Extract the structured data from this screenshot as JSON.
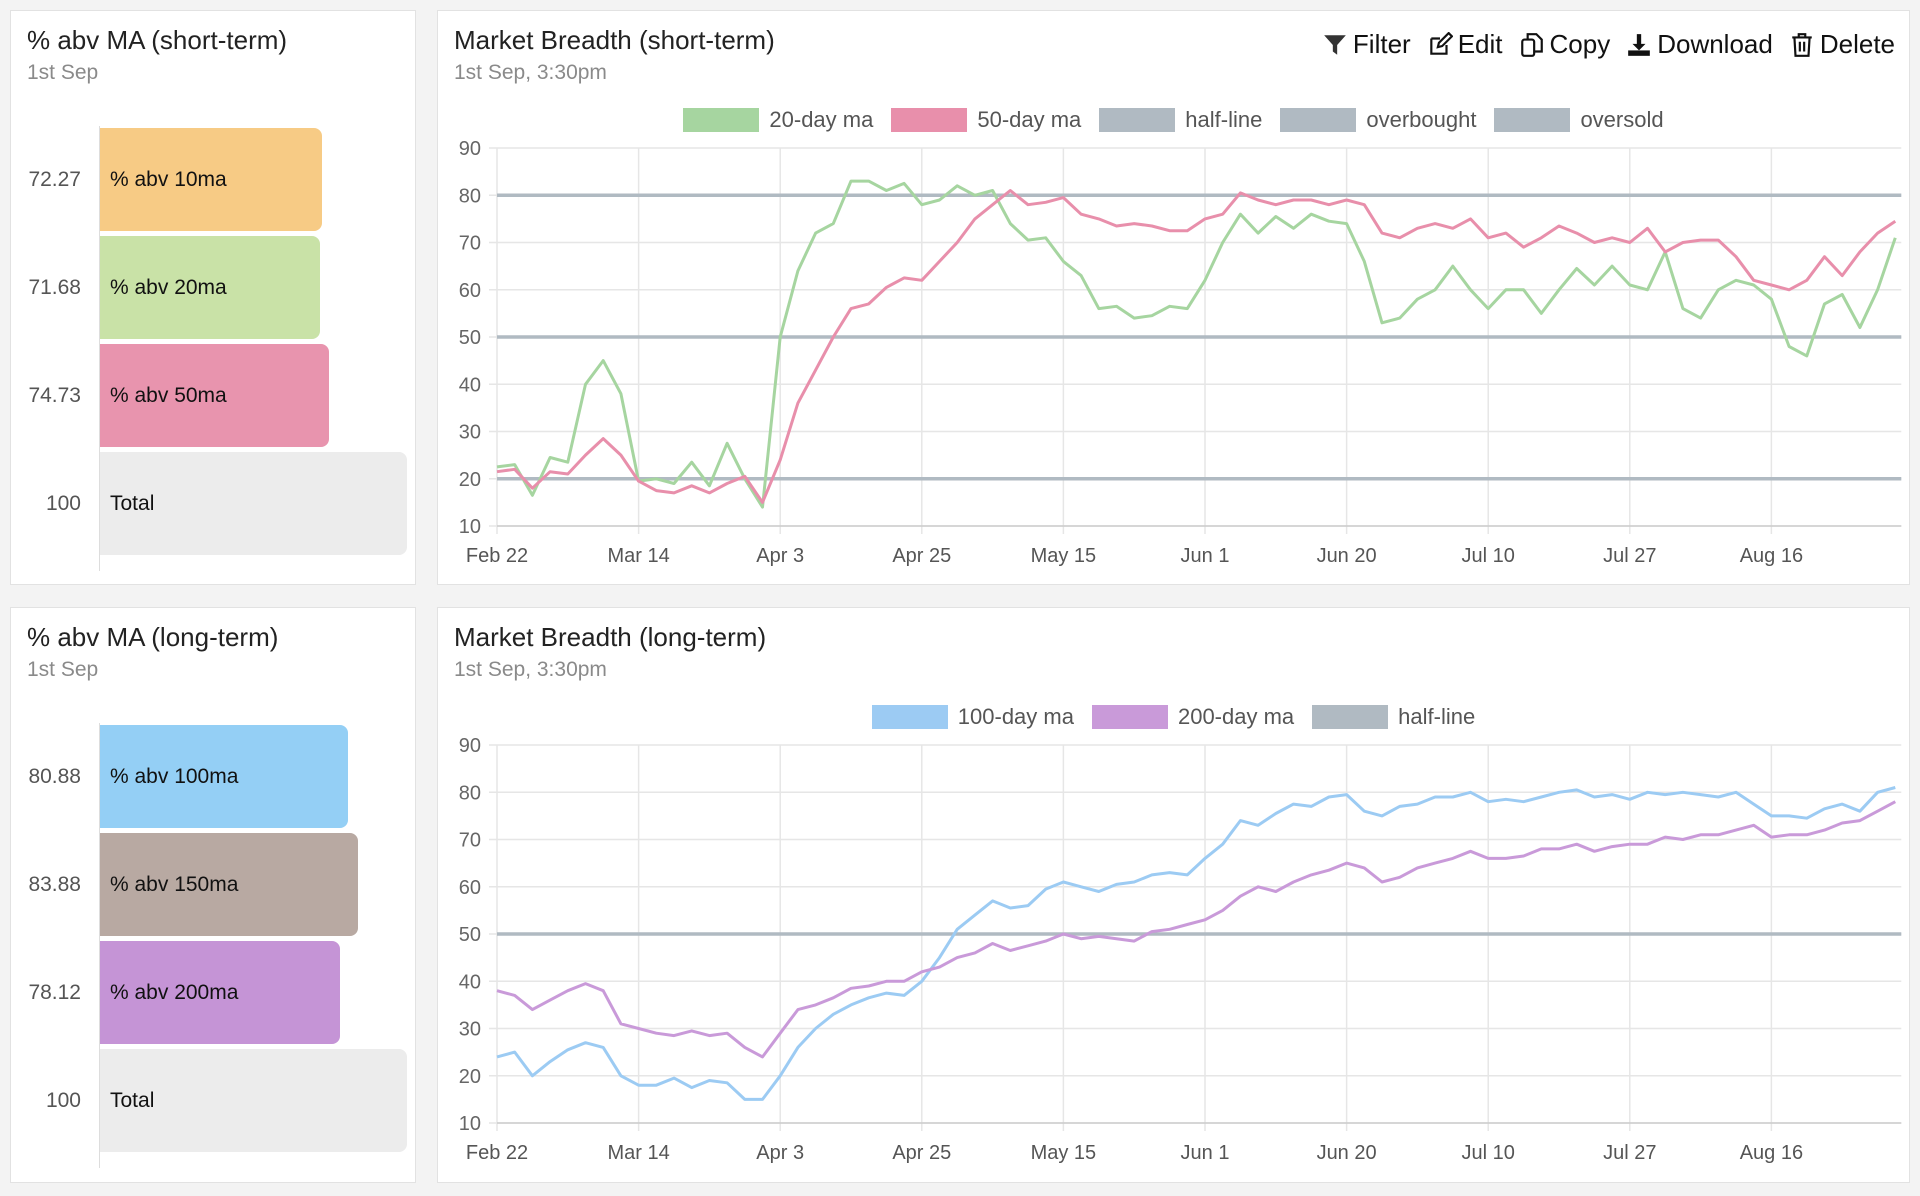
{
  "colors": {
    "ma10": "#f7cb85",
    "ma20": "#c9e2a7",
    "ma50": "#e894ae",
    "total": "#ececec",
    "ma100": "#94cff5",
    "ma150": "#b8a9a2",
    "ma200": "#c594d6",
    "line20": "#a6d5a0",
    "line50": "#e88fab",
    "line100": "#9ccbf3",
    "line200": "#c99ad9",
    "ref": "#b0bac2"
  },
  "short_bars": {
    "title": "% abv MA (short-term)",
    "subtitle": "1st Sep",
    "items": [
      {
        "label": "% abv 10ma",
        "value": 72.27,
        "display": "72.27"
      },
      {
        "label": "% abv 20ma",
        "value": 71.68,
        "display": "71.68"
      },
      {
        "label": "% abv 50ma",
        "value": 74.73,
        "display": "74.73"
      },
      {
        "label": "Total",
        "value": 100,
        "display": "100"
      }
    ]
  },
  "long_bars": {
    "title": "% abv MA (long-term)",
    "subtitle": "1st Sep",
    "items": [
      {
        "label": "% abv 100ma",
        "value": 80.88,
        "display": "80.88"
      },
      {
        "label": "% abv 150ma",
        "value": 83.88,
        "display": "83.88"
      },
      {
        "label": "% abv 200ma",
        "value": 78.12,
        "display": "78.12"
      },
      {
        "label": "Total",
        "value": 100,
        "display": "100"
      }
    ]
  },
  "toolbar": {
    "filter": "Filter",
    "edit": "Edit",
    "copy": "Copy",
    "download": "Download",
    "delete": "Delete"
  },
  "short_chart": {
    "title": "Market Breadth (short-term)",
    "subtitle": "1st Sep, 3:30pm",
    "legend": [
      "20-day ma",
      "50-day ma",
      "half-line",
      "overbought",
      "oversold"
    ]
  },
  "long_chart": {
    "title": "Market Breadth (long-term)",
    "subtitle": "1st Sep, 3:30pm",
    "legend": [
      "100-day ma",
      "200-day ma",
      "half-line"
    ]
  },
  "chart_data": [
    {
      "type": "line",
      "ylim": [
        10,
        90
      ],
      "yticks": [
        90,
        80,
        70,
        60,
        50,
        40,
        30,
        20,
        10
      ],
      "grid": true,
      "legend": "top",
      "xticks": [
        "Feb 22",
        "Mar 14",
        "Apr 3",
        "Apr 25",
        "May 15",
        "Jun 1",
        "Jun 20",
        "Jul 10",
        "Jul 27",
        "Aug 16"
      ],
      "reference_lines": [
        {
          "name": "overbought",
          "value": 80
        },
        {
          "name": "half-line",
          "value": 50
        },
        {
          "name": "oversold",
          "value": 20
        }
      ],
      "series": [
        {
          "name": "20-day ma",
          "values": [
            22.5,
            23,
            16.5,
            24.5,
            23.5,
            40,
            45,
            38,
            19.5,
            20,
            19,
            23.5,
            18.5,
            27.5,
            20,
            14,
            50,
            64,
            72,
            74,
            83,
            83,
            81,
            82.5,
            78,
            79,
            82,
            80,
            81,
            74,
            70.5,
            71,
            66,
            63,
            56,
            56.5,
            54,
            54.5,
            56.5,
            56,
            62,
            70,
            76,
            72,
            75.5,
            73,
            76,
            74.5,
            74,
            66,
            53,
            54,
            58,
            60,
            65,
            60,
            56,
            60,
            60,
            55,
            60,
            64.5,
            61,
            65,
            61,
            60,
            68,
            56,
            54,
            60,
            62,
            61,
            58,
            48,
            46,
            57,
            59,
            52,
            60,
            71
          ]
        },
        {
          "name": "50-day ma",
          "values": [
            21.5,
            22,
            18,
            21.5,
            21,
            25,
            28.5,
            25,
            19.5,
            17.5,
            17,
            18.5,
            17,
            19,
            20.5,
            15,
            24,
            36,
            43,
            50,
            56,
            57,
            60.5,
            62.5,
            62,
            66,
            70,
            75,
            78,
            81,
            78,
            78.5,
            79.5,
            76,
            75,
            73.5,
            74,
            73.5,
            72.5,
            72.5,
            75,
            76,
            80.5,
            79,
            78,
            79,
            79,
            78,
            79,
            78,
            72,
            71,
            73,
            74,
            73,
            75,
            71,
            72,
            69,
            71,
            73.5,
            72,
            70,
            71,
            70,
            73,
            68,
            70,
            70.5,
            70.5,
            67,
            62,
            61,
            60,
            62,
            67,
            63,
            68,
            72,
            74.5
          ]
        }
      ]
    },
    {
      "type": "line",
      "ylim": [
        10,
        90
      ],
      "yticks": [
        90,
        80,
        70,
        60,
        50,
        40,
        30,
        20,
        10
      ],
      "grid": true,
      "legend": "top",
      "xticks": [
        "Feb 22",
        "Mar 14",
        "Apr 3",
        "Apr 25",
        "May 15",
        "Jun 1",
        "Jun 20",
        "Jul 10",
        "Jul 27",
        "Aug 16"
      ],
      "reference_lines": [
        {
          "name": "half-line",
          "value": 50
        }
      ],
      "series": [
        {
          "name": "100-day ma",
          "values": [
            24,
            25,
            20,
            23,
            25.5,
            27,
            26,
            20,
            18,
            18,
            19.5,
            17.5,
            19,
            18.5,
            15,
            15,
            20,
            26,
            30,
            33,
            35,
            36.5,
            37.5,
            37,
            40,
            45,
            51,
            54,
            57,
            55.5,
            56,
            59.5,
            61,
            60,
            59,
            60.5,
            61,
            62.5,
            63,
            62.5,
            66,
            69,
            74,
            73,
            75.5,
            77.5,
            77,
            79,
            79.5,
            76,
            75,
            77,
            77.5,
            79,
            79,
            80,
            78,
            78.5,
            78,
            79,
            80,
            80.5,
            79,
            79.5,
            78.5,
            80,
            79.5,
            80,
            79.5,
            79,
            80,
            77.5,
            75,
            75,
            74.5,
            76.5,
            77.5,
            76,
            80,
            81
          ]
        },
        {
          "name": "200-day ma",
          "values": [
            38,
            37,
            34,
            36,
            38,
            39.5,
            38,
            31,
            30,
            29,
            28.5,
            29.5,
            28.5,
            29,
            26,
            24,
            29,
            34,
            35,
            36.5,
            38.5,
            39,
            40,
            40,
            42,
            43,
            45,
            46,
            48,
            46.5,
            47.5,
            48.5,
            50,
            49,
            49.5,
            49,
            48.5,
            50.5,
            51,
            52,
            53,
            55,
            58,
            60,
            59,
            61,
            62.5,
            63.5,
            65,
            64,
            61,
            62,
            64,
            65,
            66,
            67.5,
            66,
            66,
            66.5,
            68,
            68,
            69,
            67.5,
            68.5,
            69,
            69,
            70.5,
            70,
            71,
            71,
            72,
            73,
            70.5,
            71,
            71,
            72,
            73.5,
            74,
            76,
            78
          ]
        }
      ]
    }
  ]
}
